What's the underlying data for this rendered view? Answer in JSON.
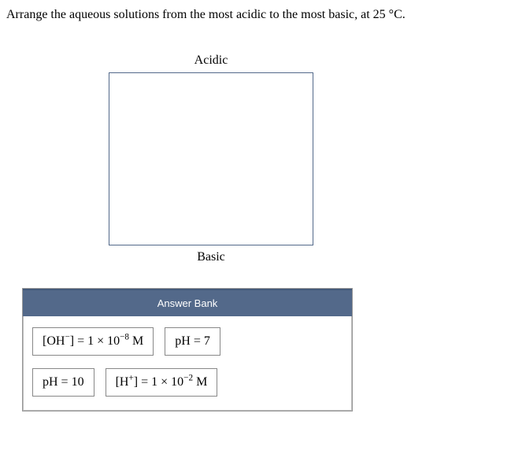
{
  "question": "Arrange the aqueous solutions from the most acidic to the most basic, at 25 °C.",
  "ranking": {
    "top_label": "Acidic",
    "bottom_label": "Basic"
  },
  "answer_bank": {
    "header": "Answer Bank",
    "tiles": [
      {
        "html": "[OH<sup>−</sup>] = 1 × 10<sup>−8</sup> M"
      },
      {
        "html": "pH = 7"
      },
      {
        "html": "pH = 10"
      },
      {
        "html": "[H<sup>+</sup>] = 1 × 10<sup>−2</sup> M"
      }
    ]
  },
  "colors": {
    "panel_header_bg": "#53698a",
    "panel_header_text": "#ffffff",
    "dropzone_border": "#53698a",
    "tile_border": "#888888"
  }
}
